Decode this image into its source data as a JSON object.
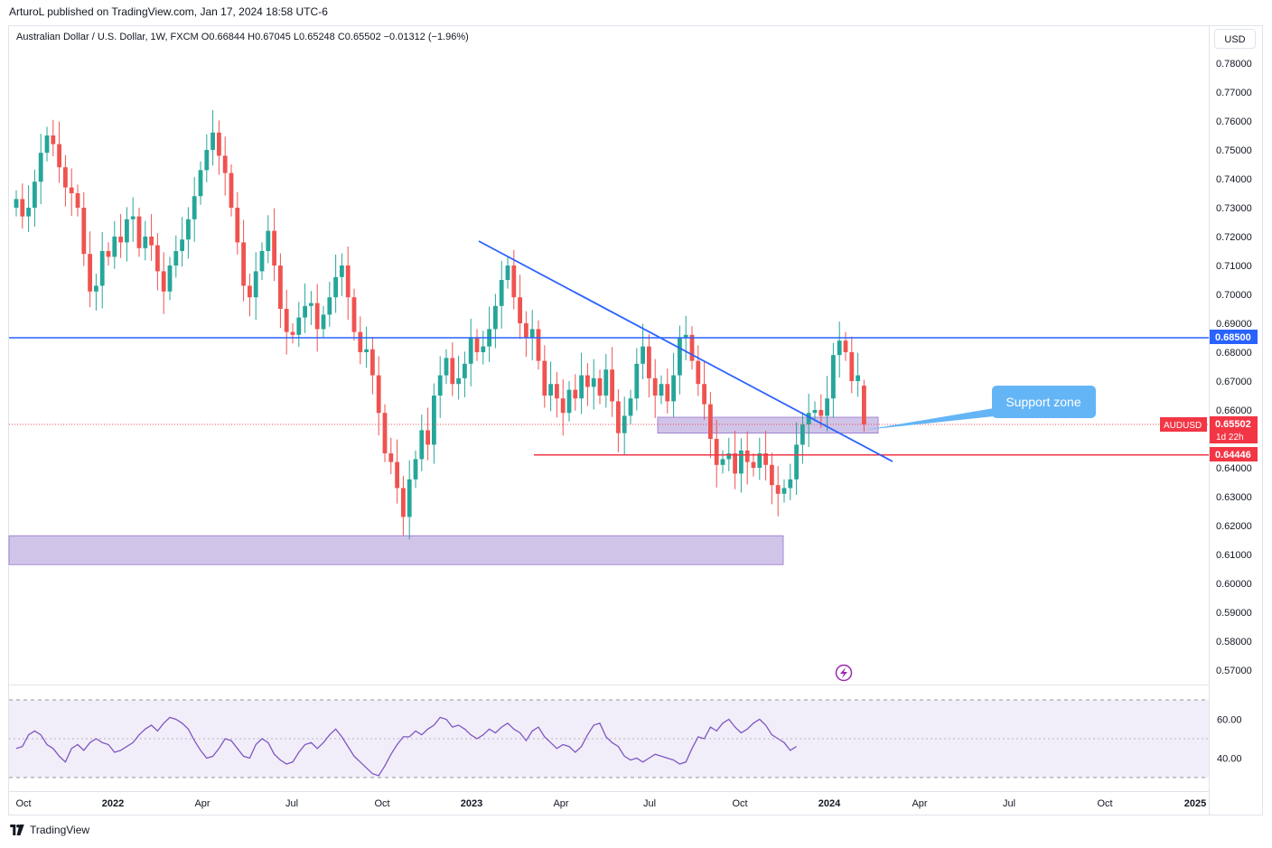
{
  "header": {
    "publisher_line": "ArturoL published on TradingView.com, Jan 17, 2024 18:58 UTC-6",
    "legend_text": "Australian Dollar / U.S. Dollar, 1W, FXCM  O0.66844  H0.67045  L0.65248  C0.65502  −0.01312 (−1.96%)"
  },
  "price_axis": {
    "currency": "USD",
    "current_symbol": "AUDUSD",
    "current_price": "0.65502",
    "countdown": "1d 22h",
    "resistance_label": "0.68500",
    "support_label": "0.64446"
  },
  "annotations": {
    "callout": "Support zone"
  },
  "footer": {
    "brand": "TradingView"
  },
  "colors": {
    "up": "#26a69a",
    "down": "#ef5350",
    "blue_line": "#2962ff",
    "red_line": "#f23645",
    "zone_fill": "#b39ddb",
    "rsi_line": "#7e57c2",
    "callout": "#64b5f6"
  },
  "chart_data": [
    {
      "type": "candlestick",
      "title": "Australian Dollar / U.S. Dollar, 1W, FXCM",
      "ylim": [
        0.565,
        0.787
      ],
      "y_ticks": [
        "0.78000",
        "0.77000",
        "0.76000",
        "0.75000",
        "0.74000",
        "0.73000",
        "0.72000",
        "0.71000",
        "0.70000",
        "0.69000",
        "0.68000",
        "0.67000",
        "0.66000",
        "0.65000",
        "0.64000",
        "0.63000",
        "0.62000",
        "0.61000",
        "0.60000",
        "0.59000",
        "0.58000",
        "0.57000"
      ],
      "x_ticks": [
        "Oct",
        "2022",
        "Apr",
        "Jul",
        "Oct",
        "2023",
        "Apr",
        "Jul",
        "Oct",
        "2024",
        "Apr",
        "Jul",
        "Oct",
        "2025"
      ],
      "last_ohlc": {
        "open": 0.66844,
        "high": 0.67045,
        "low": 0.65248,
        "close": 0.65502
      },
      "closes": [
        0.733,
        0.727,
        0.73,
        0.739,
        0.749,
        0.755,
        0.752,
        0.744,
        0.737,
        0.735,
        0.73,
        0.714,
        0.701,
        0.703,
        0.715,
        0.713,
        0.72,
        0.718,
        0.726,
        0.727,
        0.716,
        0.72,
        0.717,
        0.708,
        0.701,
        0.71,
        0.715,
        0.719,
        0.726,
        0.734,
        0.743,
        0.75,
        0.756,
        0.748,
        0.742,
        0.73,
        0.718,
        0.703,
        0.699,
        0.708,
        0.715,
        0.722,
        0.71,
        0.695,
        0.687,
        0.686,
        0.692,
        0.696,
        0.697,
        0.688,
        0.693,
        0.699,
        0.706,
        0.71,
        0.699,
        0.687,
        0.68,
        0.681,
        0.672,
        0.659,
        0.645,
        0.642,
        0.633,
        0.623,
        0.636,
        0.643,
        0.653,
        0.648,
        0.665,
        0.672,
        0.678,
        0.669,
        0.671,
        0.676,
        0.685,
        0.68,
        0.682,
        0.688,
        0.696,
        0.705,
        0.71,
        0.699,
        0.69,
        0.685,
        0.688,
        0.677,
        0.665,
        0.669,
        0.664,
        0.659,
        0.667,
        0.664,
        0.672,
        0.668,
        0.671,
        0.665,
        0.674,
        0.663,
        0.652,
        0.658,
        0.664,
        0.676,
        0.682,
        0.671,
        0.665,
        0.669,
        0.663,
        0.672,
        0.685,
        0.686,
        0.677,
        0.669,
        0.662,
        0.65,
        0.641,
        0.643,
        0.645,
        0.638,
        0.646,
        0.642,
        0.64,
        0.645,
        0.641,
        0.634,
        0.631,
        0.633,
        0.636,
        0.648,
        0.655,
        0.659,
        0.66,
        0.658,
        0.664,
        0.679,
        0.684,
        0.68,
        0.67,
        0.672,
        0.655
      ]
    },
    {
      "type": "line",
      "title": "RSI",
      "ylim": [
        27,
        73
      ],
      "y_ticks": [
        "60.00",
        "40.00"
      ],
      "bands": [
        70,
        50,
        30
      ],
      "values": [
        45,
        46,
        52,
        54,
        52,
        47,
        45,
        41,
        38,
        45,
        47,
        44,
        48,
        50,
        48,
        47,
        43,
        44,
        46,
        48,
        52,
        55,
        57,
        54,
        58,
        61,
        60,
        58,
        55,
        49,
        44,
        40,
        41,
        45,
        50,
        49,
        45,
        41,
        40,
        47,
        50,
        48,
        42,
        39,
        37,
        38,
        43,
        47,
        48,
        45,
        48,
        52,
        55,
        51,
        46,
        41,
        38,
        35,
        32,
        31,
        36,
        42,
        47,
        51,
        51,
        54,
        52,
        55,
        57,
        61,
        60,
        56,
        57,
        55,
        52,
        50,
        52,
        55,
        53,
        56,
        58,
        55,
        53,
        49,
        54,
        56,
        51,
        48,
        45,
        47,
        46,
        43,
        46,
        52,
        57,
        58,
        51,
        48,
        46,
        41,
        39,
        40,
        38,
        40,
        42,
        41,
        40,
        39,
        37,
        38,
        45,
        51,
        50,
        56,
        54,
        58,
        60,
        56,
        53,
        55,
        58,
        60,
        57,
        52,
        50,
        48,
        44,
        46
      ]
    }
  ]
}
